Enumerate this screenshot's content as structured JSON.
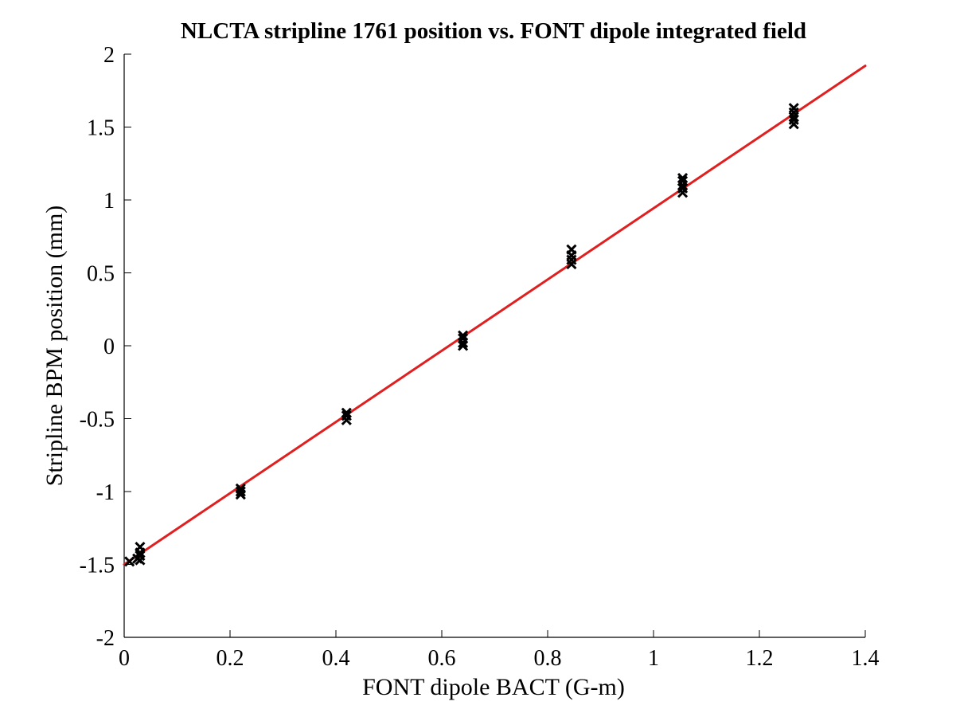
{
  "chart_data": {
    "type": "scatter",
    "title": "NLCTA stripline 1761 position vs. FONT dipole integrated field",
    "xlabel": "FONT dipole BACT (G-m)",
    "ylabel": "Stripline BPM position (mm)",
    "xlim": [
      0,
      1.4
    ],
    "ylim": [
      -2,
      2
    ],
    "x_ticks": [
      "0",
      "0.2",
      "0.4",
      "0.6",
      "0.8",
      "1",
      "1.2",
      "1.4"
    ],
    "y_ticks": [
      "2",
      "1.5",
      "1",
      "0.5",
      "0",
      "-0.5",
      "-1",
      "-1.5",
      "-2"
    ],
    "grid": false,
    "legend": "none",
    "series": [
      {
        "kind": "points",
        "marker": "x",
        "color": "#000000",
        "points": [
          [
            0.01,
            -1.48
          ],
          [
            0.025,
            -1.46
          ],
          [
            0.03,
            -1.44
          ],
          [
            0.03,
            -1.42
          ],
          [
            0.03,
            -1.38
          ],
          [
            0.03,
            -1.47
          ],
          [
            0.22,
            -1.02
          ],
          [
            0.22,
            -1.0
          ],
          [
            0.22,
            -0.98
          ],
          [
            0.42,
            -0.51
          ],
          [
            0.42,
            -0.48
          ],
          [
            0.42,
            -0.46
          ],
          [
            0.64,
            0.0
          ],
          [
            0.64,
            0.02
          ],
          [
            0.64,
            0.05
          ],
          [
            0.64,
            0.07
          ],
          [
            0.845,
            0.56
          ],
          [
            0.845,
            0.59
          ],
          [
            0.845,
            0.62
          ],
          [
            0.845,
            0.66
          ],
          [
            1.055,
            1.05
          ],
          [
            1.055,
            1.08
          ],
          [
            1.055,
            1.1
          ],
          [
            1.055,
            1.13
          ],
          [
            1.055,
            1.15
          ],
          [
            1.265,
            1.52
          ],
          [
            1.265,
            1.55
          ],
          [
            1.265,
            1.57
          ],
          [
            1.265,
            1.6
          ],
          [
            1.265,
            1.63
          ]
        ]
      },
      {
        "kind": "fit-line",
        "color": "#e02020",
        "x": [
          0,
          1.4
        ],
        "y": [
          -1.5,
          1.92
        ]
      }
    ]
  }
}
